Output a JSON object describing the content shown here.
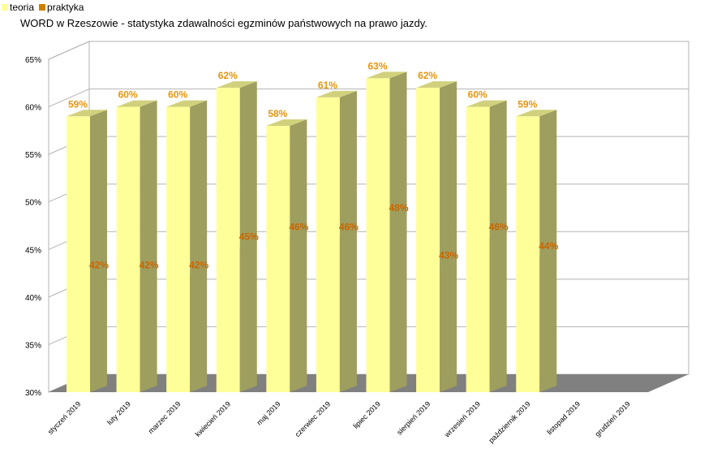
{
  "chart_data": {
    "type": "bar",
    "title": "WORD w Rzeszowie - statystyka zdawalności egzminów państwowych na prawo jazdy.",
    "categories": [
      "styczeń 2019",
      "luty 2019",
      "marzec 2019",
      "kwiecień 2019",
      "maj 2019",
      "czerwiec 2019",
      "lipiec 2019",
      "sierpień 2019",
      "wrzesień 2019",
      "październik 2019",
      "listopad 2019",
      "grudzień 2019"
    ],
    "series": [
      {
        "name": "teoria",
        "values": [
          59,
          60,
          60,
          62,
          58,
          61,
          63,
          62,
          60,
          59,
          null,
          null
        ]
      },
      {
        "name": "praktyka",
        "values": [
          42,
          42,
          42,
          45,
          46,
          46,
          48,
          43,
          46,
          44,
          null,
          null
        ]
      }
    ],
    "ylim": [
      30,
      65
    ],
    "yticks": [
      30,
      35,
      40,
      45,
      50,
      55,
      60,
      65
    ],
    "ytick_labels": [
      "30%",
      "35%",
      "40%",
      "45%",
      "50%",
      "55%",
      "60%",
      "65%"
    ],
    "data_label_suffix": "%",
    "grid": true,
    "legend_position": "top-left",
    "style": "3d",
    "colors": {
      "teoria": "#ffff99",
      "praktyka": "#cc8000",
      "teoria_label": "#e8940c",
      "praktyka_label": "#cc6600",
      "grid": "#b3b3b3",
      "floor": "#808080"
    }
  }
}
